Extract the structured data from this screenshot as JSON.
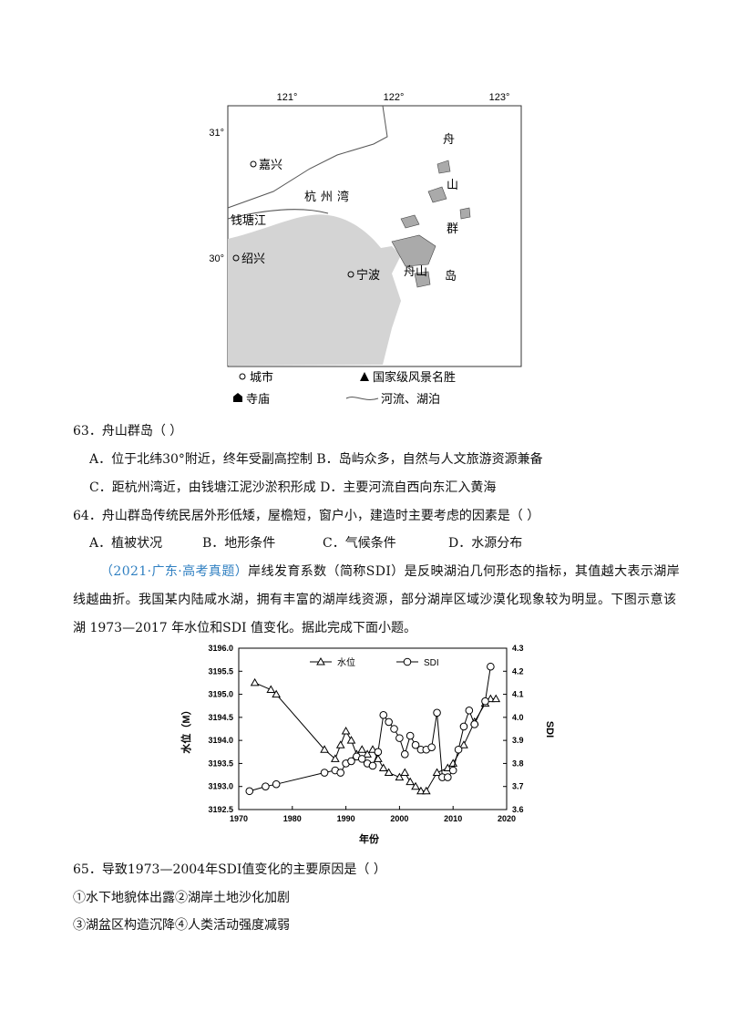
{
  "map": {
    "lon_labels": [
      "121°",
      "122°",
      "123°"
    ],
    "lat_labels": [
      "31°",
      "30°"
    ],
    "places": [
      "嘉兴",
      "杭州湾",
      "钱塘江",
      "绍兴",
      "宁波",
      "舟山",
      "岛",
      "舟",
      "山",
      "群"
    ],
    "legend": [
      "城市",
      "国家级风景名胜",
      "寺庙",
      "河流、湖泊"
    ]
  },
  "q63": {
    "stem": "63．舟山群岛（    ）",
    "options": [
      "A．位于北纬30°附近，终年受副高控制",
      "B．岛屿众多，自然与人文旅游资源兼备",
      "C．距杭州湾近，由钱塘江泥沙淤积形成",
      "D．主要河流自西向东汇入黄海"
    ]
  },
  "q64": {
    "stem": "64．舟山群岛传统民居外形低矮，屋檐短，窗户小，建造时主要考虑的因素是（    ）",
    "options": [
      "A．植被状况",
      "B．地形条件",
      "C．气候条件",
      "D．水源分布"
    ]
  },
  "passage": {
    "source": "（2021·广东·高考真题）",
    "text": [
      "岸线发育系数（简称SDI）是反映湖泊几何形态的指标，其值越大表示湖岸",
      "线越曲折。我国某内陆咸水湖，拥有丰富的湖岸线资源，部分湖岸区域沙漠化现象较为明显。下图示意该",
      "湖 1973—2017 年水位和SDI 值变化。据此完成下面小题。"
    ]
  },
  "chart_data": {
    "type": "line",
    "xlabel": "年份",
    "ylabel": "水位（M）",
    "y2label": "SDI",
    "xlim": [
      1970,
      2020
    ],
    "xticks": [
      1970,
      1980,
      1990,
      2000,
      2010,
      2020
    ],
    "ylim": [
      3192.5,
      3196.0
    ],
    "yticks": [
      3192.5,
      {
        "value": 3193.0,
        "label": "3193.0"
      },
      3193.5,
      {
        "value": 3194.0,
        "label": "3194.0"
      },
      3194.5,
      {
        "value": 3195.0,
        "label": "3195.0"
      },
      3195.5,
      {
        "value": 3196.0,
        "label": "3196.0"
      }
    ],
    "y2lim": [
      3.6,
      4.3
    ],
    "y2ticks": [
      3.6,
      3.7,
      3.8,
      3.9,
      {
        "value": 4.0,
        "label": "4.0"
      },
      4.1,
      4.2,
      4.3
    ],
    "series": [
      {
        "name": "水位",
        "color": "#000000",
        "marker": "triangle",
        "x": [
          1973,
          1976,
          1977,
          1986,
          1988,
          1989,
          1990,
          1991,
          1992,
          1993,
          1994,
          1995,
          1996,
          1997,
          1998,
          2000,
          2001,
          2002,
          2003,
          2004,
          2005,
          2007,
          2009,
          2010,
          2012,
          2014,
          2016,
          2017,
          2018
        ],
        "values": [
          3195.25,
          3195.1,
          3195.0,
          3193.8,
          3193.6,
          3193.9,
          3194.2,
          3194.0,
          3193.7,
          3193.8,
          3193.7,
          3193.8,
          3193.6,
          3193.4,
          3193.3,
          3193.2,
          3193.3,
          3193.1,
          3193.0,
          3192.9,
          3192.9,
          3193.3,
          3193.4,
          3193.5,
          3193.9,
          3194.4,
          3194.8,
          3194.9,
          3194.9
        ]
      },
      {
        "name": "SDI",
        "color": "#000000",
        "marker": "circle",
        "axis": "y2",
        "x": [
          1972,
          1975,
          1977,
          1986,
          1988,
          1989,
          1990,
          1991,
          1992,
          1993,
          1994,
          1995,
          1996,
          1997,
          1998,
          1999,
          2000,
          2001,
          2002,
          2003,
          2004,
          2005,
          2006,
          2007,
          2008,
          2009,
          2010,
          2011,
          2012,
          2013,
          2014,
          2016,
          2017
        ],
        "values": [
          3.68,
          3.7,
          3.71,
          3.76,
          3.77,
          3.76,
          3.8,
          3.81,
          3.83,
          3.82,
          3.8,
          3.79,
          3.85,
          4.01,
          3.98,
          3.95,
          3.91,
          3.84,
          3.92,
          3.88,
          3.86,
          3.86,
          3.87,
          4.02,
          3.74,
          3.74,
          3.77,
          3.86,
          3.96,
          4.03,
          3.97,
          4.07,
          4.22
        ]
      }
    ]
  },
  "q65": {
    "stem": "65．导致1973—2004年SDI值变化的主要原因是（    ）",
    "options": [
      "①水下地貌体出露②湖岸土地沙化加剧",
      "③湖盆区构造沉降④人类活动强度减弱"
    ]
  }
}
